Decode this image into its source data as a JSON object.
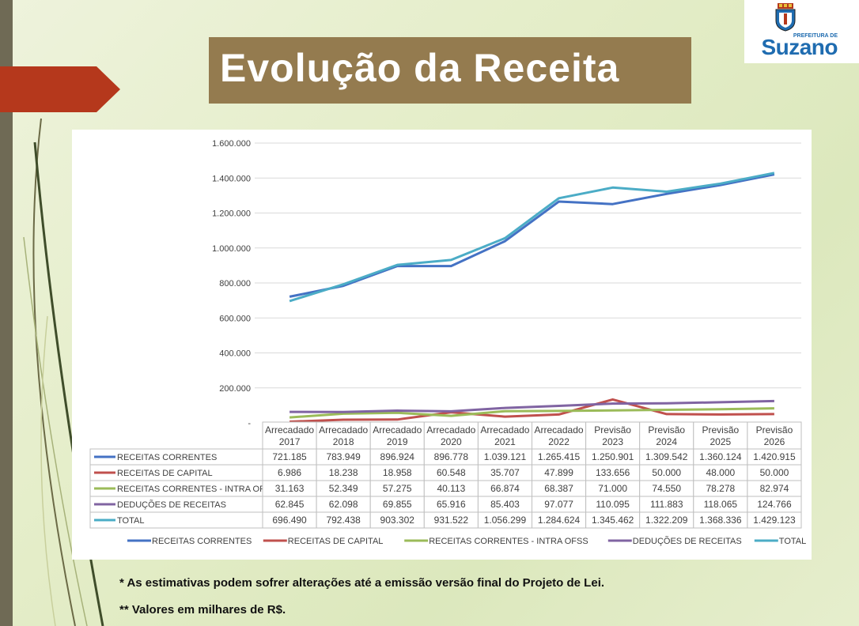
{
  "title": "Evolução da Receita",
  "logo": {
    "subtitle": "PREFEITURA DE",
    "name": "Suzano"
  },
  "notes": [
    "* As estimativas podem sofrer alterações até a emissão versão final do Projeto de Lei.",
    "** Valores em milhares de R$."
  ],
  "colors": {
    "background": "#e6eecd",
    "title_bg": "#947b4f",
    "accent_red": "#b5381c",
    "sidebar": "#6f6a55"
  },
  "chart_data": {
    "type": "line",
    "title": "",
    "xlabel": "",
    "ylabel": "",
    "ylim": [
      0,
      1600000
    ],
    "yticks": [
      "1.600.000",
      "1.400.000",
      "1.200.000",
      "1.000.000",
      "800.000",
      "600.000",
      "400.000",
      "200.000",
      "-"
    ],
    "categories": [
      [
        "Arrecadado",
        "2017"
      ],
      [
        "Arrecadado",
        "2018"
      ],
      [
        "Arrecadado",
        "2019"
      ],
      [
        "Arrecadado",
        "2020"
      ],
      [
        "Arrecadado",
        "2021"
      ],
      [
        "Arrecadado",
        "2022"
      ],
      [
        "Previsão",
        "2023"
      ],
      [
        "Previsão",
        "2024"
      ],
      [
        "Previsão",
        "2025"
      ],
      [
        "Previsão",
        "2026"
      ]
    ],
    "grid": true,
    "legend": "bottom",
    "series": [
      {
        "name": "RECEITAS CORRENTES",
        "color": "#4472c4",
        "values": [
          721185,
          783949,
          896924,
          896778,
          1039121,
          1265415,
          1250901,
          1309542,
          1360124,
          1420915
        ],
        "labels": [
          "721.185",
          "783.949",
          "896.924",
          "896.778",
          "1.039.121",
          "1.265.415",
          "1.250.901",
          "1.309.542",
          "1.360.124",
          "1.420.915"
        ]
      },
      {
        "name": "RECEITAS DE CAPITAL",
        "color": "#c0504d",
        "values": [
          6986,
          18238,
          18958,
          60548,
          35707,
          47899,
          133656,
          50000,
          48000,
          50000
        ],
        "labels": [
          "6.986",
          "18.238",
          "18.958",
          "60.548",
          "35.707",
          "47.899",
          "133.656",
          "50.000",
          "48.000",
          "50.000"
        ]
      },
      {
        "name": "RECEITAS CORRENTES - INTRA OFSS",
        "color": "#9bbb59",
        "values": [
          31163,
          52349,
          57275,
          40113,
          66874,
          68387,
          71000,
          74550,
          78278,
          82974
        ],
        "labels": [
          "31.163",
          "52.349",
          "57.275",
          "40.113",
          "66.874",
          "68.387",
          "71.000",
          "74.550",
          "78.278",
          "82.974"
        ]
      },
      {
        "name": "DEDUÇÕES DE RECEITAS",
        "color": "#8064a2",
        "values": [
          62845,
          62098,
          69855,
          65916,
          85403,
          97077,
          110095,
          111883,
          118065,
          124766
        ],
        "labels": [
          "62.845",
          "62.098",
          "69.855",
          "65.916",
          "85.403",
          "97.077",
          "110.095",
          "111.883",
          "118.065",
          "124.766"
        ]
      },
      {
        "name": "TOTAL",
        "color": "#4bacc6",
        "values": [
          696490,
          792438,
          903302,
          931522,
          1056299,
          1284624,
          1345462,
          1322209,
          1368336,
          1429123
        ],
        "labels": [
          "696.490",
          "792.438",
          "903.302",
          "931.522",
          "1.056.299",
          "1.284.624",
          "1.345.462",
          "1.322.209",
          "1.368.336",
          "1.429.123"
        ]
      }
    ]
  }
}
